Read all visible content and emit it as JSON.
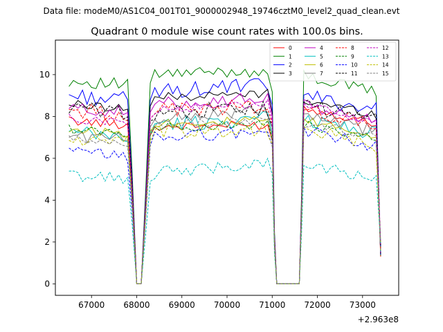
{
  "chart_data": {
    "type": "line",
    "suptitle": "Data file: modeM0/AS1C04_001T01_9000002948_19746cztM0_level2_quad_clean.evt",
    "title": "Quadrant 0 module wise count rates with 100.0s bins.",
    "xlabel": "",
    "ylabel": "",
    "offset_text": "+2.963e8",
    "xlim": [
      66200,
      73800
    ],
    "ylim": [
      -0.55,
      11.65
    ],
    "xticks": [
      67000,
      68000,
      69000,
      70000,
      71000,
      72000,
      73000
    ],
    "xtick_labels": [
      "67000",
      "68000",
      "69000",
      "70000",
      "71000",
      "72000",
      "73000"
    ],
    "yticks": [
      0,
      2,
      4,
      6,
      8,
      10
    ],
    "ytick_labels": [
      "0",
      "2",
      "4",
      "6",
      "8",
      "10"
    ],
    "legend_position": "upper right",
    "segments": [
      {
        "x0": 66500,
        "x1": 67900
      },
      {
        "x0": 68200,
        "x1": 71000
      },
      {
        "x0": 71700,
        "x1": 73400
      }
    ],
    "gaps": [
      {
        "x0": 68000,
        "x1": 68100
      },
      {
        "x0": 71100,
        "x1": 71600
      }
    ],
    "series": [
      {
        "name": "0",
        "color": "#ff0000",
        "dash": "solid",
        "levels": [
          7.8,
          7.5,
          7.6,
          8.1
        ]
      },
      {
        "name": "1",
        "color": "#008000",
        "dash": "solid",
        "levels": [
          9.7,
          10.0,
          10.2,
          9.6
        ]
      },
      {
        "name": "2",
        "color": "#0000ff",
        "dash": "solid",
        "levels": [
          9.0,
          9.2,
          9.5,
          8.7
        ]
      },
      {
        "name": "3",
        "color": "#000000",
        "dash": "solid",
        "levels": [
          8.6,
          8.9,
          9.1,
          8.5
        ]
      },
      {
        "name": "4",
        "color": "#bf00bf",
        "dash": "solid",
        "levels": [
          8.4,
          8.6,
          8.9,
          8.2
        ]
      },
      {
        "name": "5",
        "color": "#00bfbf",
        "dash": "solid",
        "levels": [
          7.2,
          7.6,
          7.9,
          7.6
        ]
      },
      {
        "name": "6",
        "color": "#bfbf00",
        "dash": "solid",
        "levels": [
          7.4,
          7.7,
          7.8,
          7.5
        ]
      },
      {
        "name": "7",
        "color": "#808080",
        "dash": "solid",
        "levels": [
          7.1,
          7.9,
          8.3,
          7.7
        ]
      },
      {
        "name": "8",
        "color": "#ff0000",
        "dash": "dashed",
        "levels": [
          8.3,
          8.3,
          8.5,
          8.0
        ]
      },
      {
        "name": "9",
        "color": "#008000",
        "dash": "dashed",
        "levels": [
          7.4,
          7.5,
          7.6,
          7.3
        ]
      },
      {
        "name": "10",
        "color": "#0000ff",
        "dash": "dashed",
        "levels": [
          6.3,
          7.0,
          7.3,
          7.0
        ]
      },
      {
        "name": "11",
        "color": "#000000",
        "dash": "dashed",
        "levels": [
          8.4,
          8.2,
          8.4,
          8.2
        ]
      },
      {
        "name": "12",
        "color": "#bf00bf",
        "dash": "dashed",
        "levels": [
          7.9,
          8.3,
          8.6,
          8.2
        ]
      },
      {
        "name": "13",
        "color": "#00bfbf",
        "dash": "dashed",
        "levels": [
          5.2,
          5.3,
          5.8,
          5.4
        ]
      },
      {
        "name": "14",
        "color": "#bfbf00",
        "dash": "dashed",
        "levels": [
          6.9,
          7.2,
          7.4,
          7.0
        ]
      },
      {
        "name": "15",
        "color": "#808080",
        "dash": "dashed",
        "levels": [
          6.9,
          7.6,
          7.8,
          7.4
        ]
      }
    ]
  }
}
